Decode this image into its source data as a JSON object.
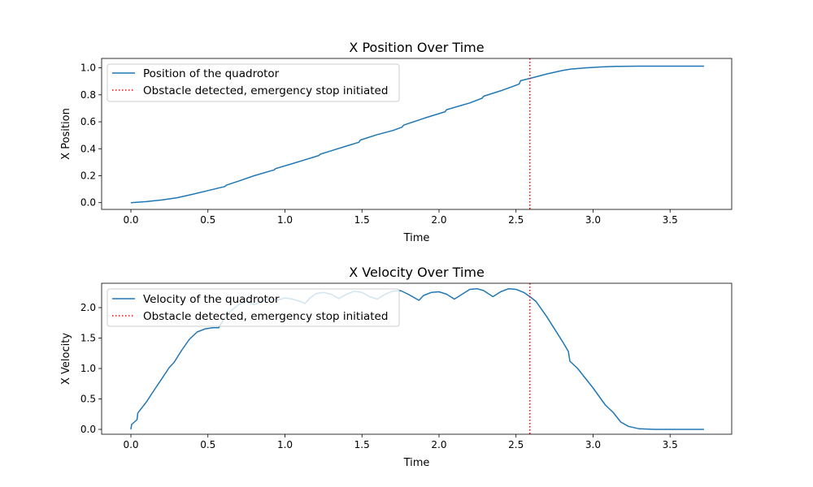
{
  "chart_data": [
    {
      "type": "line",
      "title": "X Position Over Time",
      "xlabel": "Time",
      "ylabel": "X Position",
      "xlim": [
        -0.19,
        3.9
      ],
      "ylim": [
        -0.05,
        1.07
      ],
      "xticks": [
        0.0,
        0.5,
        1.0,
        1.5,
        2.0,
        2.5,
        3.0,
        3.5
      ],
      "xtick_labels": [
        "0.0",
        "0.5",
        "1.0",
        "1.5",
        "2.0",
        "2.5",
        "3.0",
        "3.5"
      ],
      "yticks": [
        0.0,
        0.2,
        0.4,
        0.6,
        0.8,
        1.0
      ],
      "ytick_labels": [
        "0.0",
        "0.2",
        "0.4",
        "0.6",
        "0.8",
        "1.0"
      ],
      "grid": false,
      "legend_position": "top-left",
      "series": [
        {
          "name": "Position of the quadrotor",
          "color": "#1f77b4",
          "x": [
            0.0,
            0.1,
            0.2,
            0.3,
            0.4,
            0.5,
            0.61,
            0.62,
            0.7,
            0.8,
            0.93,
            0.94,
            1.05,
            1.15,
            1.22,
            1.23,
            1.3,
            1.4,
            1.48,
            1.49,
            1.6,
            1.7,
            1.76,
            1.77,
            1.9,
            2.04,
            2.05,
            2.2,
            2.28,
            2.29,
            2.4,
            2.52,
            2.53,
            2.6,
            2.7,
            2.8,
            2.84,
            2.85,
            2.95,
            3.05,
            3.15,
            3.3,
            3.5,
            3.72
          ],
          "y": [
            0.0,
            0.008,
            0.02,
            0.037,
            0.062,
            0.09,
            0.12,
            0.13,
            0.16,
            0.2,
            0.243,
            0.253,
            0.29,
            0.325,
            0.35,
            0.36,
            0.385,
            0.42,
            0.448,
            0.465,
            0.505,
            0.535,
            0.56,
            0.575,
            0.625,
            0.675,
            0.69,
            0.74,
            0.775,
            0.79,
            0.83,
            0.88,
            0.905,
            0.925,
            0.955,
            0.98,
            0.988,
            0.99,
            1.0,
            1.007,
            1.011,
            1.013,
            1.013,
            1.013
          ]
        }
      ],
      "annotations": [
        {
          "type": "vline",
          "x": 2.59,
          "label": "Obstacle detected, emergency stop initiated",
          "color": "#ff0000",
          "style": "dotted"
        }
      ]
    },
    {
      "type": "line",
      "title": "X Velocity Over Time",
      "xlabel": "Time",
      "ylabel": "X Velocity",
      "xlim": [
        -0.19,
        3.9
      ],
      "ylim": [
        -0.08,
        2.4
      ],
      "xticks": [
        0.0,
        0.5,
        1.0,
        1.5,
        2.0,
        2.5,
        3.0,
        3.5
      ],
      "xtick_labels": [
        "0.0",
        "0.5",
        "1.0",
        "1.5",
        "2.0",
        "2.5",
        "3.0",
        "3.5"
      ],
      "yticks": [
        0.0,
        0.5,
        1.0,
        1.5,
        2.0
      ],
      "ytick_labels": [
        "0.0",
        "0.5",
        "1.0",
        "1.5",
        "2.0"
      ],
      "grid": false,
      "legend_position": "top-left",
      "series": [
        {
          "name": "Velocity of the quadrotor",
          "color": "#1f77b4",
          "x": [
            0.0,
            0.005,
            0.04,
            0.045,
            0.1,
            0.15,
            0.2,
            0.25,
            0.28,
            0.33,
            0.38,
            0.43,
            0.48,
            0.53,
            0.57,
            0.6,
            0.65,
            0.7,
            0.75,
            0.8,
            0.85,
            0.9,
            0.95,
            1.0,
            1.05,
            1.1,
            1.13,
            1.16,
            1.2,
            1.25,
            1.3,
            1.35,
            1.4,
            1.45,
            1.5,
            1.55,
            1.6,
            1.65,
            1.7,
            1.75,
            1.8,
            1.87,
            1.9,
            1.95,
            2.0,
            2.05,
            2.1,
            2.15,
            2.2,
            2.25,
            2.29,
            2.35,
            2.4,
            2.45,
            2.5,
            2.55,
            2.59,
            2.63,
            2.7,
            2.8,
            2.84,
            2.85,
            2.9,
            3.0,
            3.08,
            3.13,
            3.18,
            3.23,
            3.3,
            3.4,
            3.5,
            3.72
          ],
          "y": [
            0.0,
            0.08,
            0.16,
            0.27,
            0.45,
            0.64,
            0.83,
            1.02,
            1.1,
            1.3,
            1.48,
            1.6,
            1.65,
            1.67,
            1.67,
            1.8,
            1.95,
            2.05,
            2.1,
            2.05,
            2.1,
            2.15,
            2.12,
            2.16,
            2.14,
            2.1,
            2.07,
            2.15,
            2.23,
            2.25,
            2.22,
            2.15,
            2.22,
            2.27,
            2.25,
            2.18,
            2.14,
            2.22,
            2.27,
            2.28,
            2.22,
            2.12,
            2.2,
            2.25,
            2.26,
            2.22,
            2.14,
            2.22,
            2.3,
            2.31,
            2.28,
            2.18,
            2.26,
            2.31,
            2.3,
            2.25,
            2.18,
            2.1,
            1.85,
            1.45,
            1.28,
            1.12,
            1.0,
            0.68,
            0.4,
            0.28,
            0.12,
            0.05,
            0.01,
            0.0,
            0.0,
            0.0
          ]
        }
      ],
      "annotations": [
        {
          "type": "vline",
          "x": 2.59,
          "label": "Obstacle detected, emergency stop initiated",
          "color": "#ff0000",
          "style": "dotted"
        }
      ]
    }
  ]
}
